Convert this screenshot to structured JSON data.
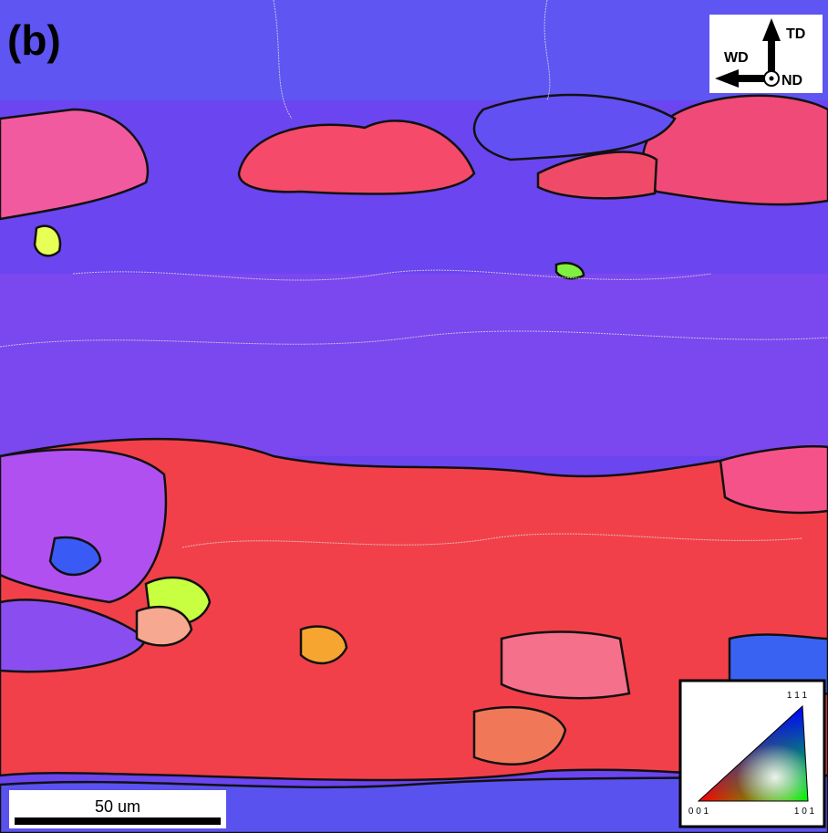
{
  "panel_label": "(b)",
  "orientation": {
    "td": "TD",
    "wd": "WD",
    "nd": "ND"
  },
  "scale_bar": {
    "label": "50 um"
  },
  "ipf_legend": {
    "top": "1 1 1",
    "left": "0 0 1",
    "right": "1 0 1"
  }
}
